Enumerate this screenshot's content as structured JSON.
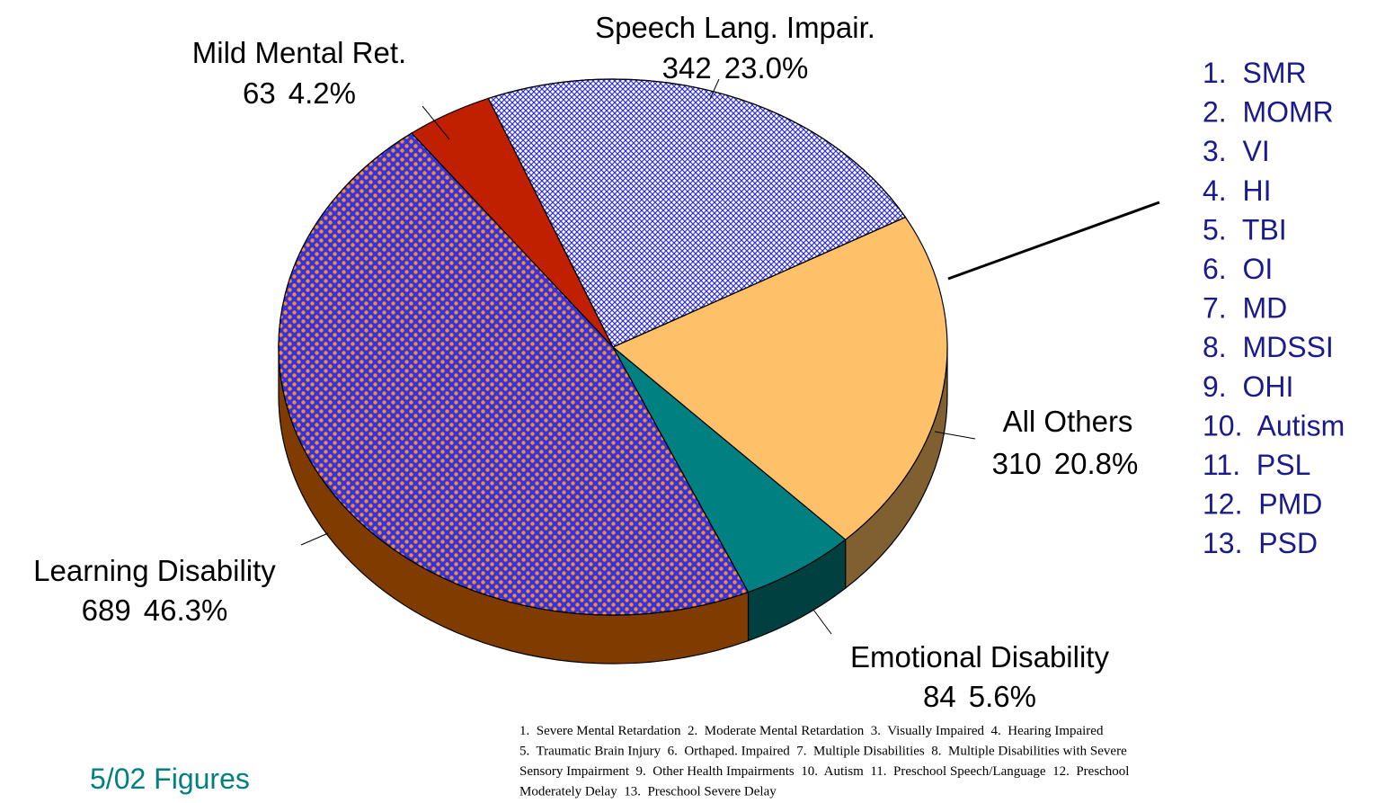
{
  "chart_data": {
    "type": "pie",
    "categories": [
      "All Others",
      "Emotional Disability",
      "Learning Disability",
      "Mild Mental Ret.",
      "Speech Lang. Impair."
    ],
    "values": [
      20.8,
      5.6,
      46.3,
      4.2,
      23.0
    ],
    "value_labels": [
      "20.8%",
      "5.6%",
      "46.3%",
      "4.2%",
      "23.0%"
    ],
    "counts": [
      310,
      84,
      689,
      63,
      342
    ],
    "colors": [
      "#ffc06a",
      "#008080",
      "#3333e6",
      "#c02000",
      "#ffffff"
    ],
    "side_colors": [
      "#806030",
      "#004040",
      "#803c00",
      "#601000",
      "#808080"
    ],
    "legend_list": [
      "1.  SMR",
      "2.  MOMR",
      "3.  VI",
      "4.  HI",
      "5.  TBI",
      "6.  OI",
      "7.  MD",
      "8.  MDSSI",
      "9.  OHI",
      "10.  Autism",
      "11.  PSL",
      "12.  PMD",
      "13.  PSD"
    ],
    "footnote": [
      "1.  Severe Mental Retardation  2.  Moderate Mental Retardation  3.  Visually Impaired  4.  Hearing Impaired",
      "5.  Traumatic Brain Injury  6.  Orthaped. Impaired  7.  Multiple Disabilities  8.  Multiple Disabilities with Severe",
      "Sensory Impairment  9.  Other Health Impairments  10.  Autism  11.  Preschool Speech/Language  12.  Preschool",
      "Moderately Delay  13.  Preschool Severe Delay"
    ],
    "date_note": "5/02 Figures"
  }
}
